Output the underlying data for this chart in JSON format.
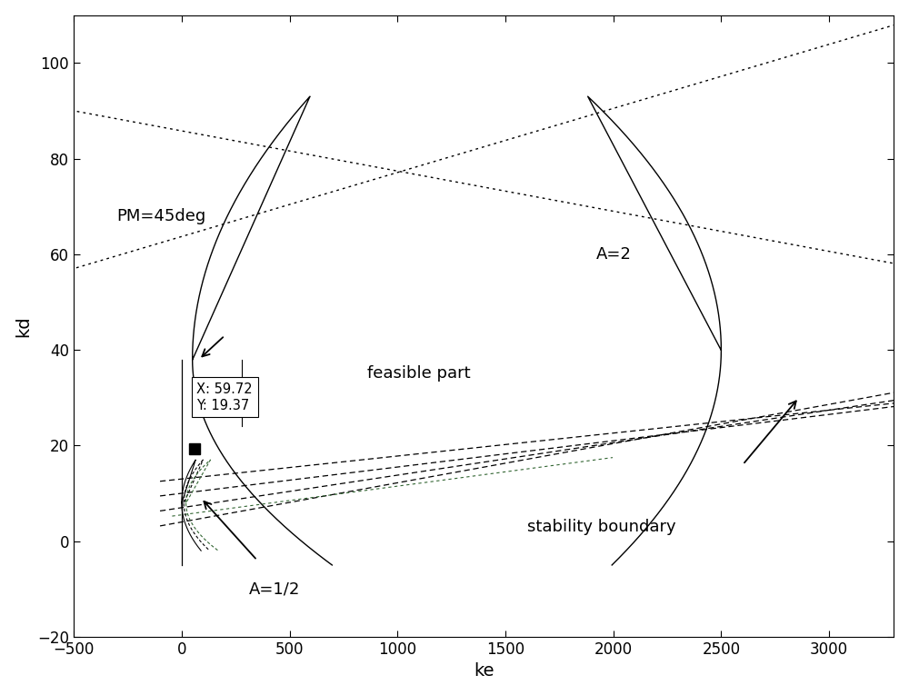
{
  "xlim": [
    -500,
    3300
  ],
  "ylim": [
    -20,
    110
  ],
  "xlabel": "ke",
  "ylabel": "kd",
  "xlabel_fontsize": 14,
  "ylabel_fontsize": 14,
  "tick_fontsize": 12,
  "xticks": [
    -500,
    0,
    500,
    1000,
    1500,
    2000,
    2500,
    3000
  ],
  "yticks": [
    -20,
    0,
    20,
    40,
    60,
    80,
    100
  ],
  "point_x": 59.72,
  "point_y": 19.37,
  "annotation_text": "X: 59.72\nY: 19.37",
  "pm45_label": "PM=45deg",
  "feasible_label": "feasible part",
  "A2_label": "A=2",
  "A12_label": "A=1/2",
  "stability_label": "stability boundary"
}
